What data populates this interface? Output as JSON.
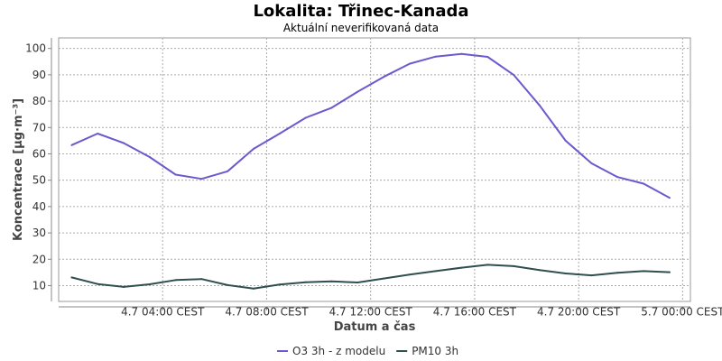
{
  "chart_data": {
    "type": "line",
    "title": "Lokalita: Třinec-Kanada",
    "subtitle": "Aktuální neverifikovaná data",
    "xlabel": "Datum a čas",
    "ylabel": "Koncentrace [µg·m⁻³]",
    "ylim": [
      4,
      104
    ],
    "yticks": [
      10,
      20,
      30,
      40,
      50,
      60,
      70,
      80,
      90,
      100
    ],
    "x_hours": [
      1,
      3,
      5,
      7,
      9,
      11,
      13,
      15,
      17,
      19,
      21,
      23,
      25,
      27,
      29,
      31,
      33,
      35,
      37,
      39,
      41,
      43,
      45,
      47
    ],
    "xlim_hours": [
      0,
      48.6
    ],
    "xticks": [
      {
        "hour": 8,
        "label": "4.7 04:00 CEST"
      },
      {
        "hour": 16,
        "label": "4.7 08:00 CEST"
      },
      {
        "hour": 24,
        "label": "4.7 12:00 CEST"
      },
      {
        "hour": 32,
        "label": "4.7 16:00 CEST"
      },
      {
        "hour": 40,
        "label": "4.7 20:00 CEST"
      },
      {
        "hour": 48,
        "label": "5.7 00:00 CEST"
      }
    ],
    "grid": true,
    "legend_position": "bottom",
    "series": [
      {
        "name": "O3 3h - z modelu",
        "color": "#6a5acd",
        "values": [
          63.3,
          67.7,
          64.1,
          58.8,
          52.1,
          50.5,
          53.4,
          61.9,
          67.7,
          73.7,
          77.5,
          83.6,
          89.2,
          94.2,
          96.9,
          97.9,
          96.8,
          90.0,
          78.4,
          65.0,
          56.4,
          51.2,
          48.7,
          43.3
        ]
      },
      {
        "name": "PM10 3h",
        "color": "#2f4f4f",
        "values": [
          13.1,
          10.6,
          9.5,
          10.5,
          12.1,
          12.5,
          10.2,
          8.9,
          10.4,
          11.3,
          11.6,
          11.2,
          12.7,
          14.2,
          15.5,
          16.8,
          17.9,
          17.4,
          15.9,
          14.6,
          13.9,
          14.9,
          15.5,
          15.1
        ]
      }
    ]
  }
}
